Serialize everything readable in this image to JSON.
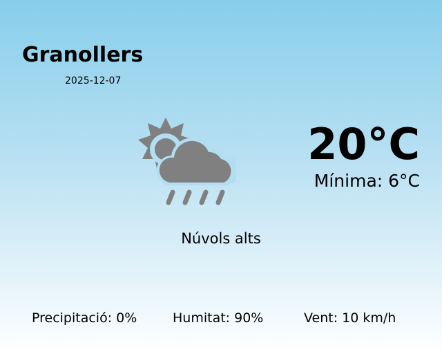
{
  "city": "Granollers",
  "date": "2025-12-07",
  "icon": "partly-cloudy-rain-icon",
  "temperature": "20°C",
  "minimum": "Mínima: 6°C",
  "description": "Núvols alts",
  "stats": {
    "precipitation": "Precipitació: 0%",
    "humidity": "Humitat: 90%",
    "wind": "Vent: 10 km/h"
  },
  "colors": {
    "icon": "#808080",
    "sky_top": "#87ceeb"
  }
}
